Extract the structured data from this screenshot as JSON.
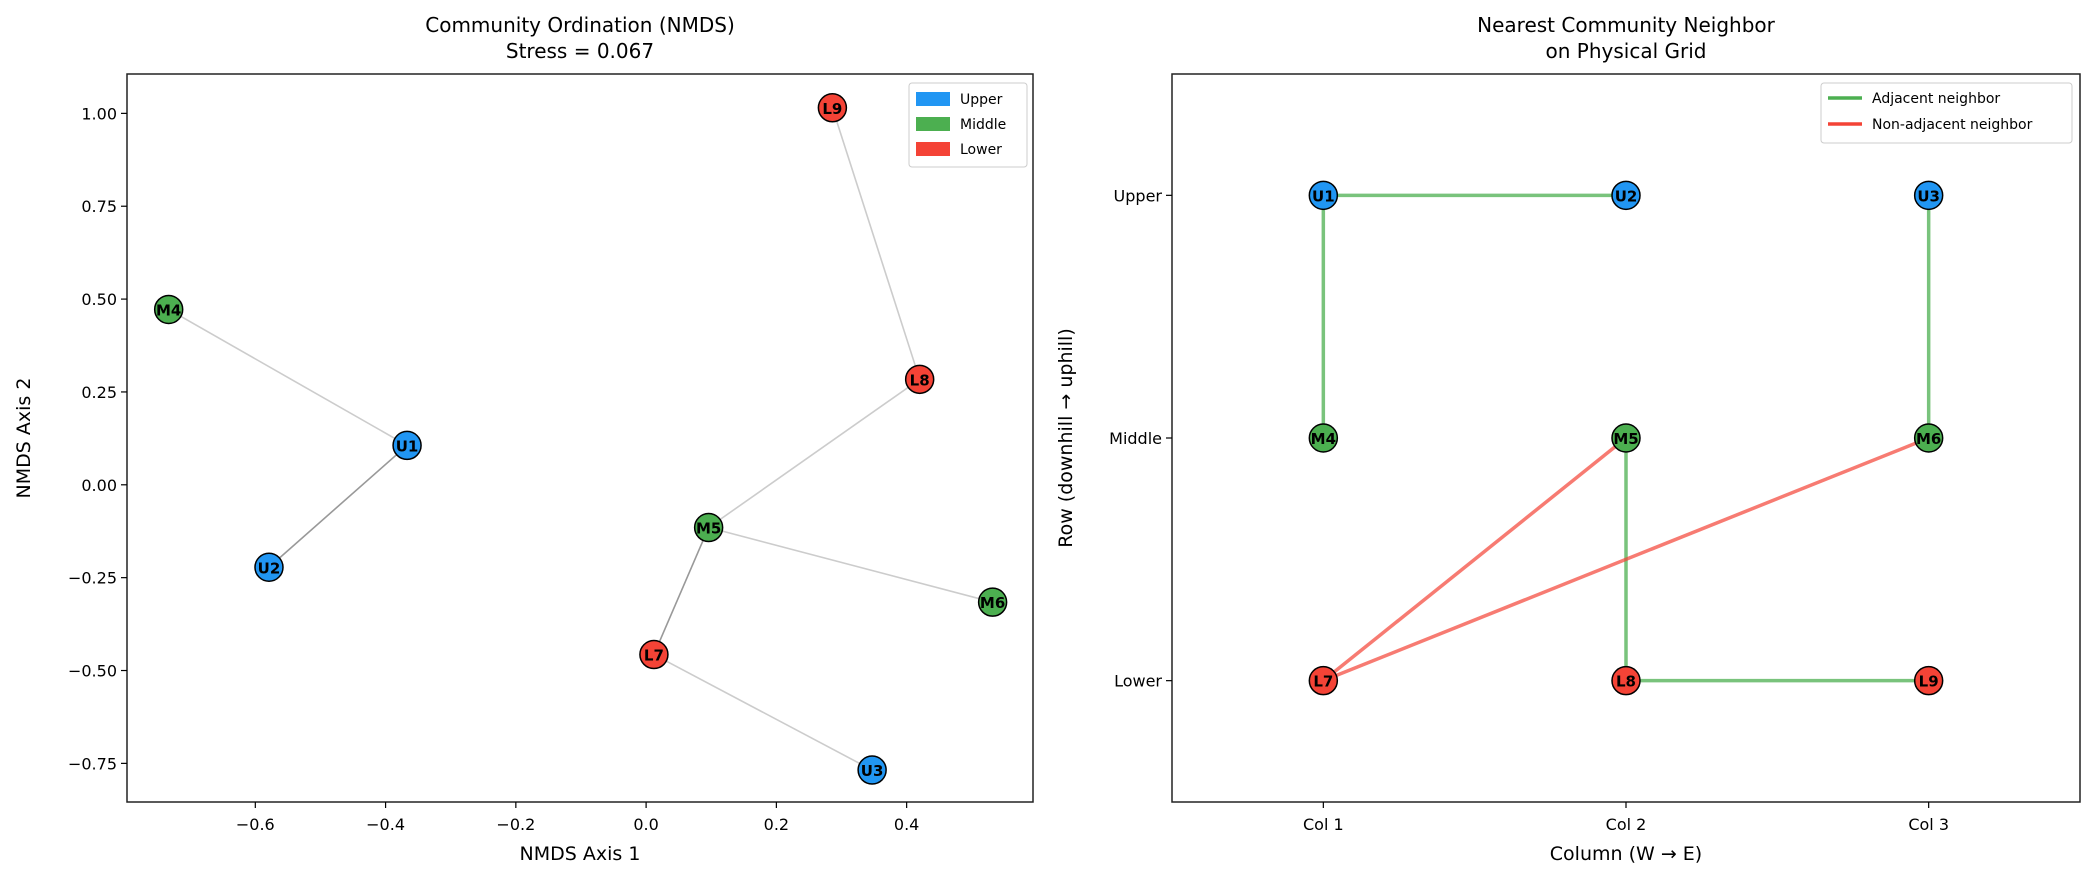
{
  "colors": {
    "Upper": "#2196f3",
    "Middle": "#4caf50",
    "Lower": "#f44336",
    "edge_light": "#cccccc",
    "edge_dark": "#999999",
    "adjacent": "#4caf50",
    "non_adjacent": "#f44336"
  },
  "chart_data": [
    {
      "type": "scatter",
      "title": "Community Ordination (NMDS)",
      "subtitle": "Stress = 0.067",
      "xlabel": "NMDS Axis 1",
      "ylabel": "NMDS Axis 2",
      "xlim": [
        -0.797,
        0.594
      ],
      "ylim": [
        -0.854,
        1.106
      ],
      "xticks": [
        -0.6,
        -0.4,
        -0.2,
        0.0,
        0.2,
        0.4
      ],
      "xtick_labels": [
        "−0.6",
        "−0.4",
        "−0.2",
        "0.0",
        "0.2",
        "0.4"
      ],
      "yticks": [
        1.0,
        0.75,
        0.5,
        0.25,
        0.0,
        -0.25,
        -0.5,
        -0.75
      ],
      "ytick_labels": [
        "1.00",
        "0.75",
        "0.50",
        "0.25",
        "0.00",
        "−0.25",
        "−0.50",
        "−0.75"
      ],
      "grid": false,
      "legend": {
        "placement": "top-right",
        "entries": [
          "Upper",
          "Middle",
          "Lower"
        ]
      },
      "points": [
        {
          "label": "U1",
          "group": "Upper",
          "x": -0.367,
          "y": 0.106
        },
        {
          "label": "U2",
          "group": "Upper",
          "x": -0.579,
          "y": -0.222
        },
        {
          "label": "U3",
          "group": "Upper",
          "x": 0.347,
          "y": -0.768
        },
        {
          "label": "M4",
          "group": "Middle",
          "x": -0.733,
          "y": 0.472
        },
        {
          "label": "M5",
          "group": "Middle",
          "x": 0.096,
          "y": -0.115
        },
        {
          "label": "M6",
          "group": "Middle",
          "x": 0.532,
          "y": -0.316
        },
        {
          "label": "L7",
          "group": "Lower",
          "x": 0.012,
          "y": -0.457
        },
        {
          "label": "L8",
          "group": "Lower",
          "x": 0.42,
          "y": 0.284
        },
        {
          "label": "L9",
          "group": "Lower",
          "x": 0.286,
          "y": 1.015
        }
      ],
      "edges": [
        {
          "from": "M4",
          "to": "U1",
          "mutual": false
        },
        {
          "from": "U1",
          "to": "U2",
          "mutual": true
        },
        {
          "from": "L9",
          "to": "L8",
          "mutual": false
        },
        {
          "from": "L8",
          "to": "M5",
          "mutual": false
        },
        {
          "from": "M6",
          "to": "M5",
          "mutual": false
        },
        {
          "from": "M5",
          "to": "L7",
          "mutual": true
        },
        {
          "from": "U3",
          "to": "L7",
          "mutual": false
        }
      ]
    },
    {
      "type": "network",
      "title": "Nearest Community Neighbor",
      "subtitle": "on Physical Grid",
      "xlabel": "Column (W → E)",
      "ylabel": "Row (downhill → uphill)",
      "xlim": [
        0.5,
        3.5
      ],
      "ylim": [
        -0.5,
        2.5
      ],
      "xticks": [
        1,
        2,
        3
      ],
      "xtick_labels": [
        "Col 1",
        "Col 2",
        "Col 3"
      ],
      "yticks": [
        0,
        1,
        2
      ],
      "ytick_labels": [
        "Lower",
        "Middle",
        "Upper"
      ],
      "grid": false,
      "legend": {
        "placement": "top-right",
        "entries": [
          "Adjacent neighbor",
          "Non-adjacent neighbor"
        ]
      },
      "nodes": [
        {
          "label": "U1",
          "group": "Upper",
          "col": 1,
          "row": 2
        },
        {
          "label": "U2",
          "group": "Upper",
          "col": 2,
          "row": 2
        },
        {
          "label": "U3",
          "group": "Upper",
          "col": 3,
          "row": 2
        },
        {
          "label": "M4",
          "group": "Middle",
          "col": 1,
          "row": 1
        },
        {
          "label": "M5",
          "group": "Middle",
          "col": 2,
          "row": 1
        },
        {
          "label": "M6",
          "group": "Middle",
          "col": 3,
          "row": 1
        },
        {
          "label": "L7",
          "group": "Lower",
          "col": 1,
          "row": 0
        },
        {
          "label": "L8",
          "group": "Lower",
          "col": 2,
          "row": 0
        },
        {
          "label": "L9",
          "group": "Lower",
          "col": 3,
          "row": 0
        }
      ],
      "edges": [
        {
          "from": "U1",
          "to": "U2",
          "adjacent": true
        },
        {
          "from": "U1",
          "to": "M4",
          "adjacent": true
        },
        {
          "from": "U3",
          "to": "M6",
          "adjacent": true
        },
        {
          "from": "M5",
          "to": "L8",
          "adjacent": true
        },
        {
          "from": "L8",
          "to": "L9",
          "adjacent": true
        },
        {
          "from": "L7",
          "to": "M5",
          "adjacent": false
        },
        {
          "from": "L7",
          "to": "M6",
          "adjacent": false
        }
      ]
    }
  ]
}
